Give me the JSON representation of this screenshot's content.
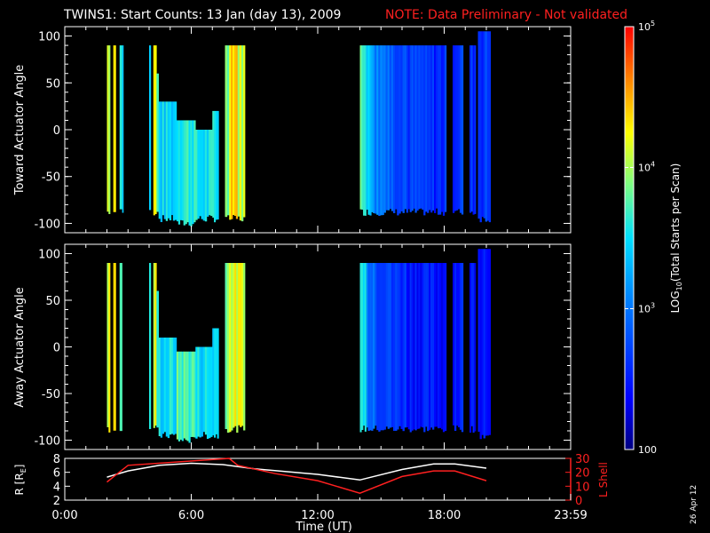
{
  "header": {
    "title": "TWINS1: Start Counts: 13 Jan (day  13), 2009",
    "note": "NOTE: Data Preliminary - Not validated"
  },
  "footer": {
    "date_stamp": "26 Apr 12"
  },
  "colors": {
    "note": "#ff2020",
    "lshell": "#ff2020",
    "r": "#ffffff",
    "background": "#000000"
  },
  "chart_data": [
    {
      "type": "heatmap",
      "name": "toward",
      "ylabel": "Toward Actuator Angle",
      "ylim": [
        -110,
        110
      ],
      "yticks": [
        "100",
        "50",
        "0",
        "-50",
        "-100"
      ],
      "xlim_hours": [
        0,
        24
      ],
      "scale": "log",
      "blocks": [
        {
          "t0": 2.0,
          "t1": 2.15,
          "lo": -88,
          "hi": 90,
          "c": 0.72
        },
        {
          "t0": 2.3,
          "t1": 2.42,
          "lo": -88,
          "hi": 90,
          "c": 0.78
        },
        {
          "t0": 2.6,
          "t1": 2.72,
          "lo": -88,
          "hi": 90,
          "c": 0.6
        },
        {
          "t0": 2.72,
          "t1": 2.78,
          "lo": -88,
          "hi": 90,
          "c": 0.45
        },
        {
          "t0": 4.0,
          "t1": 4.08,
          "lo": -88,
          "hi": 90,
          "c": 0.5
        },
        {
          "t0": 4.2,
          "t1": 4.35,
          "lo": -88,
          "hi": 90,
          "c": 0.75
        },
        {
          "t0": 4.35,
          "t1": 4.45,
          "lo": -85,
          "hi": 60,
          "c": 0.55
        },
        {
          "t0": 4.45,
          "t1": 5.3,
          "lo": -95,
          "hi": 30,
          "c": 0.48
        },
        {
          "t0": 5.3,
          "t1": 6.2,
          "lo": -100,
          "hi": 10,
          "c": 0.55
        },
        {
          "t0": 6.2,
          "t1": 7.0,
          "lo": -95,
          "hi": 0,
          "c": 0.5
        },
        {
          "t0": 7.0,
          "t1": 7.3,
          "lo": -95,
          "hi": 20,
          "c": 0.52
        },
        {
          "t0": 7.6,
          "t1": 7.8,
          "lo": -95,
          "hi": 90,
          "c": 0.62
        },
        {
          "t0": 7.8,
          "t1": 8.2,
          "lo": -95,
          "hi": 90,
          "c": 0.82
        },
        {
          "t0": 8.2,
          "t1": 8.55,
          "lo": -95,
          "hi": 90,
          "c": 0.7
        },
        {
          "t0": 14.0,
          "t1": 14.3,
          "lo": -88,
          "hi": 90,
          "c": 0.6
        },
        {
          "t0": 14.3,
          "t1": 14.7,
          "lo": -88,
          "hi": 90,
          "c": 0.45
        },
        {
          "t0": 14.7,
          "t1": 15.4,
          "lo": -88,
          "hi": 90,
          "c": 0.35
        },
        {
          "t0": 15.4,
          "t1": 16.2,
          "lo": -88,
          "hi": 90,
          "c": 0.28
        },
        {
          "t0": 16.2,
          "t1": 17.1,
          "lo": -88,
          "hi": 90,
          "c": 0.22
        },
        {
          "t0": 17.1,
          "t1": 18.1,
          "lo": -88,
          "hi": 90,
          "c": 0.19
        },
        {
          "t0": 18.4,
          "t1": 18.9,
          "lo": -88,
          "hi": 90,
          "c": 0.22
        },
        {
          "t0": 19.2,
          "t1": 19.5,
          "lo": -88,
          "hi": 90,
          "c": 0.2
        },
        {
          "t0": 19.6,
          "t1": 20.2,
          "lo": -95,
          "hi": 105,
          "c": 0.22
        }
      ]
    },
    {
      "type": "heatmap",
      "name": "away",
      "ylabel": "Away Actuator Angle",
      "ylim": [
        -110,
        110
      ],
      "yticks": [
        "100",
        "50",
        "0",
        "-50",
        "-100"
      ],
      "xlim_hours": [
        0,
        24
      ],
      "scale": "log",
      "blocks": [
        {
          "t0": 2.0,
          "t1": 2.15,
          "lo": -88,
          "hi": 90,
          "c": 0.72
        },
        {
          "t0": 2.3,
          "t1": 2.42,
          "lo": -88,
          "hi": 90,
          "c": 0.78
        },
        {
          "t0": 2.6,
          "t1": 2.72,
          "lo": -88,
          "hi": 90,
          "c": 0.6
        },
        {
          "t0": 4.0,
          "t1": 4.08,
          "lo": -88,
          "hi": 90,
          "c": 0.5
        },
        {
          "t0": 4.2,
          "t1": 4.35,
          "lo": -88,
          "hi": 90,
          "c": 0.72
        },
        {
          "t0": 4.35,
          "t1": 4.45,
          "lo": -90,
          "hi": 60,
          "c": 0.55
        },
        {
          "t0": 4.45,
          "t1": 5.3,
          "lo": -95,
          "hi": 10,
          "c": 0.5
        },
        {
          "t0": 5.3,
          "t1": 6.2,
          "lo": -100,
          "hi": -5,
          "c": 0.58
        },
        {
          "t0": 6.2,
          "t1": 7.0,
          "lo": -95,
          "hi": 0,
          "c": 0.5
        },
        {
          "t0": 7.0,
          "t1": 7.3,
          "lo": -95,
          "hi": 20,
          "c": 0.5
        },
        {
          "t0": 7.6,
          "t1": 7.8,
          "lo": -88,
          "hi": 90,
          "c": 0.66
        },
        {
          "t0": 7.8,
          "t1": 8.55,
          "lo": -88,
          "hi": 90,
          "c": 0.72
        },
        {
          "t0": 14.0,
          "t1": 14.3,
          "lo": -88,
          "hi": 90,
          "c": 0.52
        },
        {
          "t0": 14.3,
          "t1": 14.7,
          "lo": -88,
          "hi": 90,
          "c": 0.35
        },
        {
          "t0": 14.7,
          "t1": 15.4,
          "lo": -88,
          "hi": 90,
          "c": 0.27
        },
        {
          "t0": 15.4,
          "t1": 16.2,
          "lo": -88,
          "hi": 90,
          "c": 0.21
        },
        {
          "t0": 16.2,
          "t1": 17.1,
          "lo": -88,
          "hi": 90,
          "c": 0.17
        },
        {
          "t0": 17.1,
          "t1": 18.1,
          "lo": -88,
          "hi": 90,
          "c": 0.15
        },
        {
          "t0": 18.4,
          "t1": 18.9,
          "lo": -88,
          "hi": 90,
          "c": 0.17
        },
        {
          "t0": 19.2,
          "t1": 19.5,
          "lo": -88,
          "hi": 90,
          "c": 0.16
        },
        {
          "t0": 19.6,
          "t1": 20.2,
          "lo": -95,
          "hi": 105,
          "c": 0.18
        }
      ]
    },
    {
      "type": "line",
      "name": "orbit",
      "ylabel_left": "R [R",
      "ylabel_left_sub": "E",
      "ylabel_left_close": "]",
      "ylim_left": [
        2,
        8
      ],
      "yticks_left": [
        "8",
        "6",
        "4",
        "2"
      ],
      "ylabel_right": "L Shell",
      "ylim_right": [
        0,
        30
      ],
      "yticks_right": [
        "30",
        "20",
        "10",
        "0"
      ],
      "xlabel": "Time (UT)",
      "xlim_hours": [
        0,
        24
      ],
      "xticks": [
        {
          "h": 0,
          "label": "0:00"
        },
        {
          "h": 6,
          "label": "6:00"
        },
        {
          "h": 12,
          "label": "12:00"
        },
        {
          "h": 18,
          "label": "18:00"
        },
        {
          "h": 24,
          "label": "23:59"
        }
      ],
      "series": [
        {
          "axis": "left",
          "x": [
            2.0,
            3.0,
            4.5,
            6.0,
            7.5,
            9.0,
            12.0,
            14.0,
            16.0,
            17.5,
            18.5,
            20.0
          ],
          "y": [
            5.3,
            6.2,
            7.0,
            7.3,
            7.1,
            6.5,
            5.7,
            4.9,
            6.4,
            7.2,
            7.2,
            6.6
          ]
        },
        {
          "axis": "right",
          "x": [
            2.0,
            3.0,
            7.8,
            8.2,
            10.0,
            12.0,
            14.0,
            16.0,
            17.5,
            18.5,
            20.0
          ],
          "y": [
            13.0,
            25.0,
            30.0,
            25.0,
            19.0,
            14.0,
            5.0,
            17.0,
            21.0,
            21.0,
            14.0
          ]
        }
      ]
    }
  ],
  "colorbar": {
    "label_main": "LOG",
    "label_sub": "10",
    "label_rest": "(Total Starts per Scan)",
    "ticks": [
      {
        "label": "10",
        "sup": "5",
        "frac": 1.0
      },
      {
        "label": "10",
        "sup": "4",
        "frac": 0.667
      },
      {
        "label": "10",
        "sup": "3",
        "frac": 0.333
      },
      {
        "label": "100",
        "sup": "",
        "frac": 0.0
      }
    ]
  }
}
